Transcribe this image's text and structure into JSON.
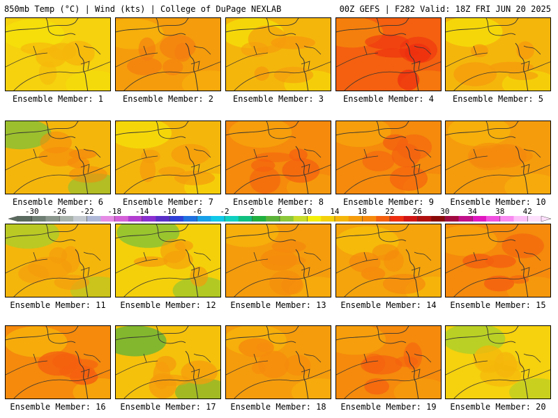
{
  "header": {
    "left": "850mb Temp (°C) | Wind (kts) | College of DuPage NEXLAB",
    "right": "00Z GEFS | F282 Valid: 18Z FRI JUN 20 2025"
  },
  "members": [
    {
      "label": "Ensemble Member: 1",
      "palette": [
        "#f5d10e",
        "#f5b60b",
        "#f4e20a"
      ]
    },
    {
      "label": "Ensemble Member: 2",
      "palette": [
        "#f59c0c",
        "#f47c10",
        "#f5b60b"
      ]
    },
    {
      "label": "Ensemble Member: 3",
      "palette": [
        "#f5b60b",
        "#f59c0c",
        "#f4e20a"
      ]
    },
    {
      "label": "Ensemble Member: 4",
      "palette": [
        "#f4600f",
        "#ee2e10",
        "#f58a0c"
      ]
    },
    {
      "label": "Ensemble Member: 5",
      "palette": [
        "#f5b60b",
        "#f59c0c",
        "#f4e20a"
      ]
    },
    {
      "label": "Ensemble Member: 6",
      "palette": [
        "#f5b60b",
        "#f58a0c",
        "#7cc23a"
      ]
    },
    {
      "label": "Ensemble Member: 7",
      "palette": [
        "#f5b60b",
        "#f59c0c",
        "#f4e20a"
      ]
    },
    {
      "label": "Ensemble Member: 8",
      "palette": [
        "#f58a0c",
        "#f4600f",
        "#f5a40b"
      ]
    },
    {
      "label": "Ensemble Member: 9",
      "palette": [
        "#f58a0c",
        "#f4600f",
        "#f5a40b"
      ]
    },
    {
      "label": "Ensemble Member: 10",
      "palette": [
        "#f59c0c",
        "#f58a0c",
        "#f5b60b"
      ]
    },
    {
      "label": "Ensemble Member: 11",
      "palette": [
        "#f5b60b",
        "#f59c0c",
        "#a5cf2c"
      ]
    },
    {
      "label": "Ensemble Member: 12",
      "palette": [
        "#f4d00a",
        "#f59c0c",
        "#7cc23a"
      ]
    },
    {
      "label": "Ensemble Member: 13",
      "palette": [
        "#f59c0c",
        "#f58a0c",
        "#f5b60b"
      ]
    },
    {
      "label": "Ensemble Member: 14",
      "palette": [
        "#f5a40b",
        "#f58a0c",
        "#f5c10b"
      ]
    },
    {
      "label": "Ensemble Member: 15",
      "palette": [
        "#f58a0c",
        "#f4600f",
        "#f5a40b"
      ]
    },
    {
      "label": "Ensemble Member: 16",
      "palette": [
        "#f58a0c",
        "#f4600f",
        "#f5b60b"
      ]
    },
    {
      "label": "Ensemble Member: 17",
      "palette": [
        "#f5c10b",
        "#f59c0c",
        "#5cb33a"
      ]
    },
    {
      "label": "Ensemble Member: 18",
      "palette": [
        "#f59c0c",
        "#f58a0c",
        "#f5b60b"
      ]
    },
    {
      "label": "Ensemble Member: 19",
      "palette": [
        "#f58a0c",
        "#f4600f",
        "#f5a40b"
      ]
    },
    {
      "label": "Ensemble Member: 20",
      "palette": [
        "#f5d10e",
        "#f5b60b",
        "#a5cf2c"
      ]
    }
  ],
  "colorbar": {
    "ticks": [
      "-30",
      "-26",
      "-22",
      "-18",
      "-14",
      "-10",
      "-6",
      "-2",
      "2",
      "6",
      "10",
      "14",
      "18",
      "22",
      "26",
      "30",
      "34",
      "38",
      "42"
    ],
    "colors": [
      "#5a6a5e",
      "#6f7f73",
      "#8a968c",
      "#a9b2ab",
      "#c4cad0",
      "#b0b8d8",
      "#e58be5",
      "#d460d8",
      "#b33dd0",
      "#8a2fd0",
      "#5a2fc8",
      "#2f40d8",
      "#1f70e0",
      "#18a0e8",
      "#10c8e8",
      "#10d0c0",
      "#10c080",
      "#20b040",
      "#5cb33a",
      "#8cc83a",
      "#c8dc2a",
      "#f4f00a",
      "#f4d00a",
      "#f5b60b",
      "#f59c0c",
      "#f58a0c",
      "#f4600f",
      "#ee2e10",
      "#d01515",
      "#b00f10",
      "#8a0a0a",
      "#a00a40",
      "#c0108a",
      "#e018c0",
      "#f050e0",
      "#f88af0",
      "#fbc0f8",
      "#fde0fc"
    ]
  }
}
